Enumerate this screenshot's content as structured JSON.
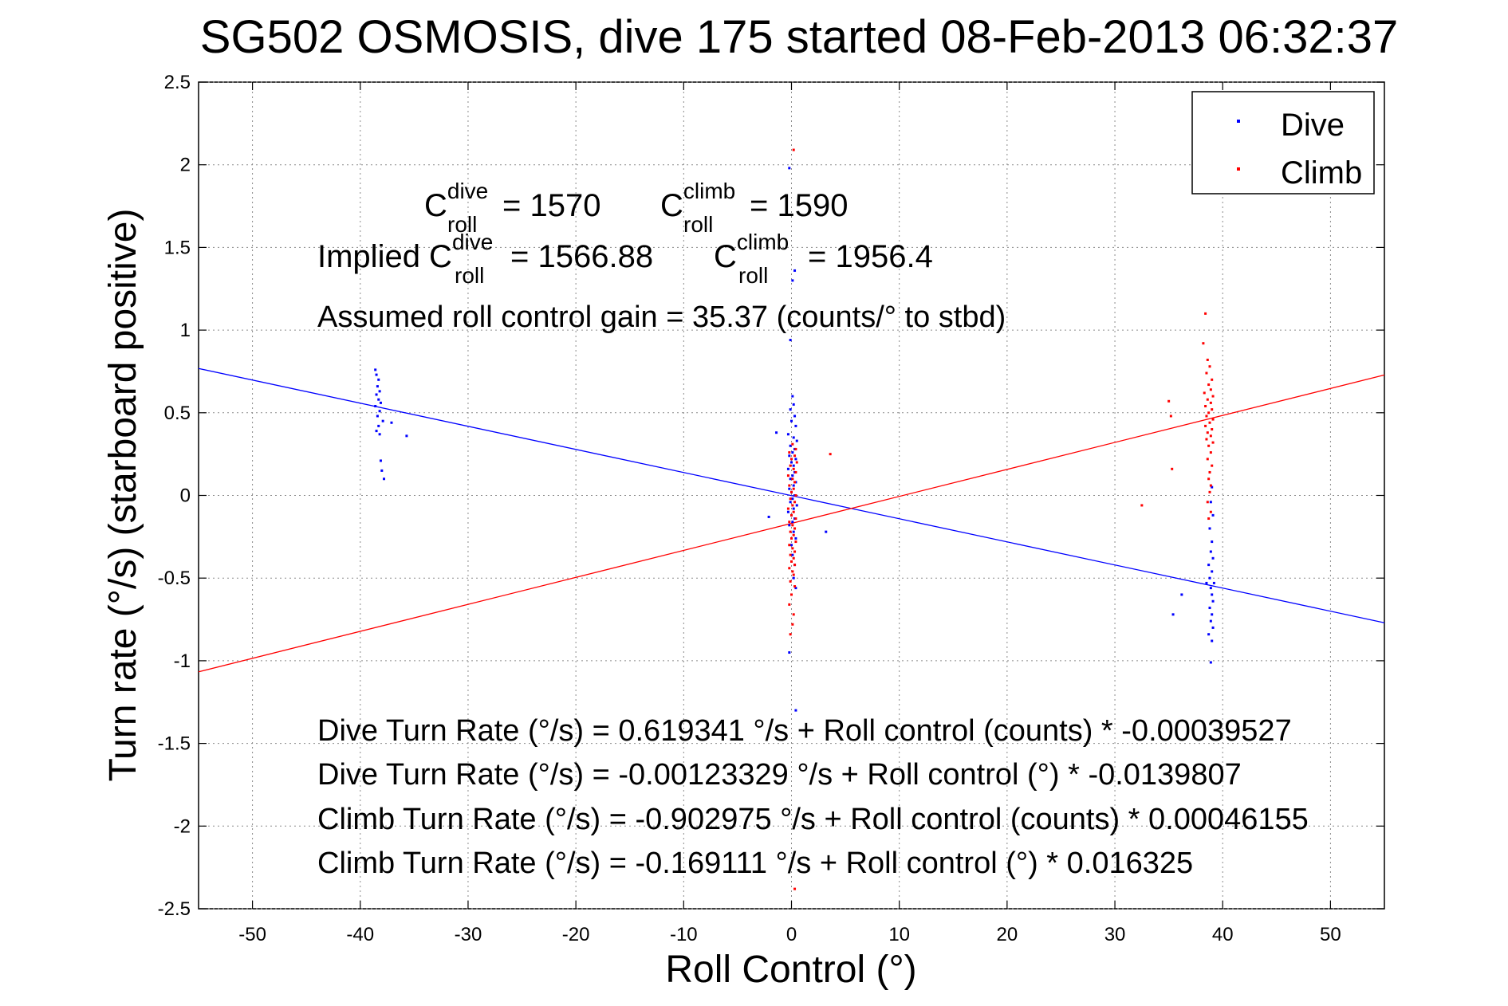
{
  "chart_data": {
    "type": "scatter",
    "title": "SG502 OSMOSIS, dive 175 started 08-Feb-2013 06:32:37",
    "xlabel": "Roll Control (°)",
    "ylabel": "Turn rate (°/s)  (starboard positive)",
    "xlim": [
      -55,
      55
    ],
    "ylim": [
      -2.5,
      2.5
    ],
    "xticks": [
      -50,
      -40,
      -30,
      -20,
      -10,
      0,
      10,
      20,
      30,
      40,
      50
    ],
    "yticks": [
      -2.5,
      -2,
      -1.5,
      -1,
      -0.5,
      0,
      0.5,
      1,
      1.5,
      2,
      2.5
    ],
    "xtick_labels": [
      "-50",
      "-40",
      "-30",
      "-20",
      "-10",
      "0",
      "10",
      "20",
      "30",
      "40",
      "50"
    ],
    "ytick_labels": [
      "-2.5",
      "-2",
      "-1.5",
      "-1",
      "-0.5",
      "0",
      "0.5",
      "1",
      "1.5",
      "2",
      "2.5"
    ],
    "grid": true,
    "legend_position": "top-right",
    "series": [
      {
        "name": "Dive",
        "color": "#0000ff",
        "points": [
          [
            -38.6,
            0.76
          ],
          [
            -38.5,
            0.73
          ],
          [
            -38.3,
            0.7
          ],
          [
            -38.4,
            0.66
          ],
          [
            -38.2,
            0.63
          ],
          [
            -38.5,
            0.61
          ],
          [
            -38.3,
            0.58
          ],
          [
            -38.1,
            0.56
          ],
          [
            -38.6,
            0.54
          ],
          [
            -38.2,
            0.51
          ],
          [
            -38.4,
            0.48
          ],
          [
            -37.9,
            0.45
          ],
          [
            -38.3,
            0.42
          ],
          [
            -38.5,
            0.39
          ],
          [
            -38.2,
            0.37
          ],
          [
            -38.1,
            0.21
          ],
          [
            -38.0,
            0.15
          ],
          [
            -37.8,
            0.1
          ],
          [
            -35.7,
            0.36
          ],
          [
            -37.1,
            0.44
          ],
          [
            -0.2,
            1.98
          ],
          [
            0.3,
            1.36
          ],
          [
            0.1,
            1.3
          ],
          [
            -0.1,
            0.94
          ],
          [
            0.1,
            0.6
          ],
          [
            0.2,
            0.55
          ],
          [
            -0.1,
            0.52
          ],
          [
            0.3,
            0.48
          ],
          [
            0.0,
            0.45
          ],
          [
            0.4,
            0.42
          ],
          [
            -1.4,
            0.38
          ],
          [
            -0.3,
            0.37
          ],
          [
            0.2,
            0.35
          ],
          [
            0.5,
            0.33
          ],
          [
            -0.1,
            0.3
          ],
          [
            0.3,
            0.28
          ],
          [
            0.1,
            0.26
          ],
          [
            -0.2,
            0.24
          ],
          [
            0.4,
            0.22
          ],
          [
            0.0,
            0.2
          ],
          [
            0.2,
            0.18
          ],
          [
            -0.3,
            0.16
          ],
          [
            0.3,
            0.14
          ],
          [
            0.1,
            0.12
          ],
          [
            -0.1,
            0.1
          ],
          [
            0.4,
            0.08
          ],
          [
            0.2,
            0.06
          ],
          [
            -0.2,
            0.04
          ],
          [
            0.0,
            0.02
          ],
          [
            0.3,
            0.0
          ],
          [
            0.1,
            -0.02
          ],
          [
            -0.1,
            -0.04
          ],
          [
            0.5,
            -0.06
          ],
          [
            0.2,
            -0.08
          ],
          [
            -0.3,
            -0.1
          ],
          [
            0.0,
            -0.12
          ],
          [
            -2.1,
            -0.13
          ],
          [
            0.3,
            -0.14
          ],
          [
            0.1,
            -0.16
          ],
          [
            -0.2,
            -0.18
          ],
          [
            0.2,
            -0.22
          ],
          [
            0.4,
            -0.26
          ],
          [
            0.0,
            -0.3
          ],
          [
            0.1,
            -0.36
          ],
          [
            0.3,
            -0.42
          ],
          [
            0.2,
            -0.5
          ],
          [
            0.4,
            -0.56
          ],
          [
            3.2,
            -0.22
          ],
          [
            -0.2,
            -0.95
          ],
          [
            0.4,
            -1.3
          ],
          [
            39.0,
            0.05
          ],
          [
            38.9,
            -0.04
          ],
          [
            39.1,
            -0.12
          ],
          [
            38.8,
            -0.2
          ],
          [
            39.0,
            -0.28
          ],
          [
            38.9,
            -0.34
          ],
          [
            39.1,
            -0.38
          ],
          [
            38.7,
            -0.42
          ],
          [
            39.0,
            -0.46
          ],
          [
            38.8,
            -0.5
          ],
          [
            39.2,
            -0.53
          ],
          [
            38.9,
            -0.56
          ],
          [
            39.0,
            -0.6
          ],
          [
            39.1,
            -0.64
          ],
          [
            38.8,
            -0.68
          ],
          [
            39.0,
            -0.72
          ],
          [
            38.9,
            -0.76
          ],
          [
            39.1,
            -0.8
          ],
          [
            38.7,
            -0.84
          ],
          [
            39.0,
            -0.88
          ],
          [
            38.9,
            -1.01
          ],
          [
            36.2,
            -0.6
          ],
          [
            35.4,
            -0.72
          ],
          [
            38.5,
            -0.53
          ]
        ]
      },
      {
        "name": "Climb",
        "color": "#ff0000",
        "points": [
          [
            0.2,
            2.09
          ],
          [
            0.1,
            0.31
          ],
          [
            0.4,
            0.28
          ],
          [
            -0.2,
            0.26
          ],
          [
            0.3,
            0.24
          ],
          [
            0.0,
            0.22
          ],
          [
            0.5,
            0.2
          ],
          [
            -0.1,
            0.18
          ],
          [
            0.2,
            0.16
          ],
          [
            0.4,
            0.14
          ],
          [
            -0.3,
            0.12
          ],
          [
            0.1,
            0.1
          ],
          [
            0.3,
            0.08
          ],
          [
            -0.2,
            0.06
          ],
          [
            0.2,
            0.04
          ],
          [
            0.0,
            0.02
          ],
          [
            0.4,
            0.0
          ],
          [
            -0.1,
            -0.02
          ],
          [
            0.3,
            -0.04
          ],
          [
            0.1,
            -0.06
          ],
          [
            -0.3,
            -0.08
          ],
          [
            0.2,
            -0.1
          ],
          [
            0.0,
            -0.12
          ],
          [
            0.4,
            -0.14
          ],
          [
            -0.2,
            -0.16
          ],
          [
            0.1,
            -0.18
          ],
          [
            0.3,
            -0.2
          ],
          [
            -0.1,
            -0.22
          ],
          [
            0.2,
            -0.24
          ],
          [
            0.0,
            -0.26
          ],
          [
            0.4,
            -0.28
          ],
          [
            -0.2,
            -0.3
          ],
          [
            0.1,
            -0.32
          ],
          [
            0.3,
            -0.34
          ],
          [
            -0.1,
            -0.36
          ],
          [
            0.2,
            -0.38
          ],
          [
            0.0,
            -0.4
          ],
          [
            0.3,
            -0.42
          ],
          [
            -0.2,
            -0.44
          ],
          [
            0.1,
            -0.46
          ],
          [
            0.2,
            -0.48
          ],
          [
            -0.1,
            -0.52
          ],
          [
            0.3,
            -0.55
          ],
          [
            0.0,
            -0.6
          ],
          [
            -0.2,
            -0.66
          ],
          [
            0.2,
            -0.72
          ],
          [
            0.1,
            -0.78
          ],
          [
            -0.1,
            -0.84
          ],
          [
            3.6,
            0.25
          ],
          [
            0.3,
            -2.38
          ],
          [
            38.4,
            1.1
          ],
          [
            38.2,
            0.92
          ],
          [
            38.6,
            0.82
          ],
          [
            38.8,
            0.78
          ],
          [
            38.5,
            0.74
          ],
          [
            39.0,
            0.7
          ],
          [
            38.7,
            0.67
          ],
          [
            38.9,
            0.64
          ],
          [
            38.3,
            0.62
          ],
          [
            39.1,
            0.6
          ],
          [
            38.6,
            0.58
          ],
          [
            38.9,
            0.56
          ],
          [
            38.4,
            0.54
          ],
          [
            39.0,
            0.52
          ],
          [
            38.7,
            0.5
          ],
          [
            38.5,
            0.48
          ],
          [
            39.1,
            0.46
          ],
          [
            38.8,
            0.44
          ],
          [
            38.4,
            0.42
          ],
          [
            39.0,
            0.4
          ],
          [
            38.6,
            0.38
          ],
          [
            38.9,
            0.36
          ],
          [
            38.5,
            0.34
          ],
          [
            39.1,
            0.32
          ],
          [
            38.7,
            0.3
          ],
          [
            38.9,
            0.26
          ],
          [
            38.6,
            0.22
          ],
          [
            39.0,
            0.18
          ],
          [
            38.8,
            0.14
          ],
          [
            38.7,
            0.1
          ],
          [
            38.9,
            0.06
          ],
          [
            38.8,
            0.02
          ],
          [
            38.6,
            -0.04
          ],
          [
            38.9,
            -0.1
          ],
          [
            38.7,
            -0.14
          ],
          [
            35.0,
            0.57
          ],
          [
            35.2,
            0.48
          ],
          [
            35.3,
            0.16
          ],
          [
            32.5,
            -0.06
          ]
        ]
      }
    ],
    "fit_lines": [
      {
        "series": "Dive",
        "color": "#0000ff",
        "intercept": -0.00123329,
        "slope": -0.0139807
      },
      {
        "series": "Climb",
        "color": "#ff0000",
        "intercept": -0.169111,
        "slope": 0.016325
      }
    ],
    "annotations": {
      "c_dive_base": "C",
      "c_dive_sup": "dive",
      "c_dive_sub": "roll",
      "c_dive_value": "= 1570",
      "c_climb_base": "C",
      "c_climb_sup": "climb",
      "c_climb_sub": "roll",
      "c_climb_value": "= 1590",
      "implied_prefix": "Implied C",
      "implied_dive_sup": "dive",
      "implied_dive_sub": "roll",
      "implied_dive_value": "= 1566.88",
      "implied_climb_base": "C",
      "implied_climb_sup": "climb",
      "implied_climb_sub": "roll",
      "implied_climb_value": "= 1956.4",
      "gain": "Assumed roll control gain = 35.37 (counts/° to stbd)",
      "eq1": "Dive Turn Rate (°/s) = 0.619341 °/s + Roll control (counts) * -0.00039527",
      "eq2": "Dive Turn Rate (°/s) = -0.00123329 °/s + Roll control (°) * -0.0139807",
      "eq3": "Climb Turn Rate (°/s) = -0.902975 °/s + Roll control (counts) * 0.00046155",
      "eq4": "Climb Turn Rate (°/s) = -0.169111 °/s + Roll control (°) * 0.016325"
    }
  }
}
